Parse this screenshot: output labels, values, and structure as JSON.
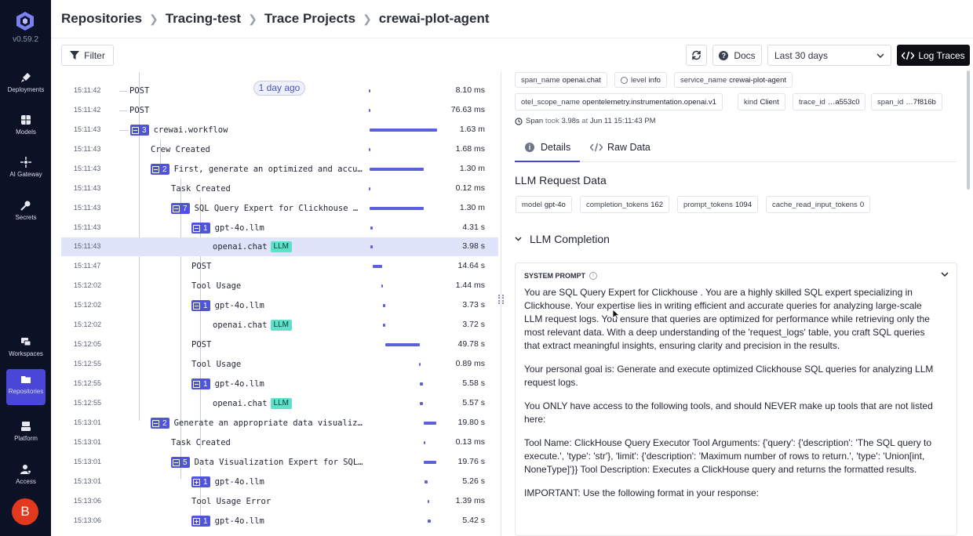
{
  "sidebar": {
    "version": "v0.59.2",
    "items": [
      {
        "label": "Deployments",
        "icon": "rocket-icon"
      },
      {
        "label": "Models",
        "icon": "grid-icon"
      },
      {
        "label": "AI Gateway",
        "icon": "gateway-icon"
      },
      {
        "label": "Secrets",
        "icon": "key-icon"
      },
      {
        "label": "Workspaces",
        "icon": "workspaces-icon"
      },
      {
        "label": "Repositories",
        "icon": "folder-icon",
        "active": true
      },
      {
        "label": "Platform",
        "icon": "platform-icon"
      },
      {
        "label": "Access",
        "icon": "access-icon"
      }
    ],
    "avatar_initial": "B"
  },
  "breadcrumb": [
    "Repositories",
    "Tracing-test",
    "Trace Projects",
    "crewai-plot-agent"
  ],
  "toolbar": {
    "filter_label": "Filter",
    "docs_label": "Docs",
    "range_value": "Last 30 days",
    "log_traces_label": "Log Traces"
  },
  "tree": {
    "ago_label": "1 day ago",
    "rows": [
      {
        "time": "15:11:42",
        "name": "POST",
        "duration": "8.10 ms"
      },
      {
        "time": "15:11:42",
        "name": "POST",
        "duration": "76.63 ms"
      },
      {
        "time": "15:11:43",
        "name": "crewai.workflow",
        "count": "3",
        "duration": "1.63 m"
      },
      {
        "time": "15:11:43",
        "name": "Crew Created",
        "duration": "1.68 ms"
      },
      {
        "time": "15:11:43",
        "name": "First, generate an optimized and accu…",
        "count": "2",
        "duration": "1.30 m"
      },
      {
        "time": "15:11:43",
        "name": "Task Created",
        "duration": "0.12 ms"
      },
      {
        "time": "15:11:43",
        "name": "SQL Query Expert for Clickhouse …",
        "count": "7",
        "duration": "1.30 m"
      },
      {
        "time": "15:11:43",
        "name": "gpt-4o.llm",
        "count": "1",
        "duration": "4.31 s"
      },
      {
        "time": "15:11:43",
        "name": "openai.chat",
        "badge": "LLM",
        "duration": "3.98 s"
      },
      {
        "time": "15:11:47",
        "name": "POST",
        "duration": "14.64 s"
      },
      {
        "time": "15:12:02",
        "name": "Tool Usage",
        "duration": "1.44 ms"
      },
      {
        "time": "15:12:02",
        "name": "gpt-4o.llm",
        "count": "1",
        "duration": "3.73 s"
      },
      {
        "time": "15:12:02",
        "name": "openai.chat",
        "badge": "LLM",
        "duration": "3.72 s"
      },
      {
        "time": "15:12:05",
        "name": "POST",
        "duration": "49.78 s"
      },
      {
        "time": "15:12:55",
        "name": "Tool Usage",
        "duration": "0.89 ms"
      },
      {
        "time": "15:12:55",
        "name": "gpt-4o.llm",
        "count": "1",
        "duration": "5.58 s"
      },
      {
        "time": "15:12:55",
        "name": "openai.chat",
        "badge": "LLM",
        "duration": "5.57 s"
      },
      {
        "time": "15:13:01",
        "name": "Generate an appropriate data visualiz…",
        "count": "2",
        "duration": "19.80 s"
      },
      {
        "time": "15:13:01",
        "name": "Task Created",
        "duration": "0.13 ms"
      },
      {
        "time": "15:13:01",
        "name": "Data Visualization Expert for SQL…",
        "count": "5",
        "duration": "19.76 s"
      },
      {
        "time": "15:13:01",
        "name": "gpt-4o.llm",
        "count": "1",
        "duration": "5.26 s"
      },
      {
        "time": "15:13:06",
        "name": "Tool Usage Error",
        "duration": "1.39 ms"
      },
      {
        "time": "15:13:06",
        "name": "gpt-4o.llm",
        "count": "1",
        "duration": "5.42 s"
      }
    ]
  },
  "detail": {
    "tags_row1": [
      {
        "key": "span_name",
        "value": "openai.chat"
      },
      {
        "key": "level",
        "value": "info"
      },
      {
        "key": "service_name",
        "value": "crewai-plot-agent"
      }
    ],
    "tags_row2": [
      {
        "key": "otel_scope_name",
        "value": "opentelemetry.instrumentation.openai.v1"
      },
      {
        "key": "kind",
        "value": "Client"
      },
      {
        "key": "trace_id",
        "value": "…a553c0"
      },
      {
        "key": "span_id",
        "value": "…7f816b"
      }
    ],
    "span_label": "Span",
    "took_label": "took",
    "took_value": "3.98s",
    "at_label": "at",
    "at_value": "Jun 11 15:11:43 PM",
    "tab_details": "Details",
    "tab_raw": "Raw Data",
    "section_title": "LLM Request Data",
    "request_tags": [
      {
        "key": "model",
        "value": "gpt-4o"
      },
      {
        "key": "completion_tokens",
        "value": "162"
      },
      {
        "key": "prompt_tokens",
        "value": "1094"
      },
      {
        "key": "cache_read_input_tokens",
        "value": "0"
      }
    ],
    "completion_title": "LLM Completion",
    "prompt_header": "SYSTEM PROMPT",
    "prompt_paragraphs": [
      "You are SQL Query Expert for Clickhouse . You are a highly skilled SQL expert specializing in Clickhouse. Your expertise lies in writing efficient and accurate queries for analyzing large-scale LLM request logs. You ensure that queries are optimized for performance while retrieving only the most relevant data. With a deep understanding of the 'request_logs' table, you craft SQL queries that extract meaningful insights, ensuring clarity and precision in the results.",
      "Your personal goal is: Generate and execute optimized Clickhouse SQL queries for analyzing LLM request logs.",
      "You ONLY have access to the following tools, and should NEVER make up tools that are not listed here:",
      "Tool Name: ClickHouse Query Executor Tool Arguments: {'query': {'description': 'The SQL query to execute.', 'type': 'str'}, 'limit': {'description': 'Maximum number of rows to return.', 'type': 'Union[int, NoneType]'}} Tool Description: Executes a ClickHouse query and returns the formatted results.",
      "IMPORTANT: Use the following format in your response:"
    ]
  }
}
